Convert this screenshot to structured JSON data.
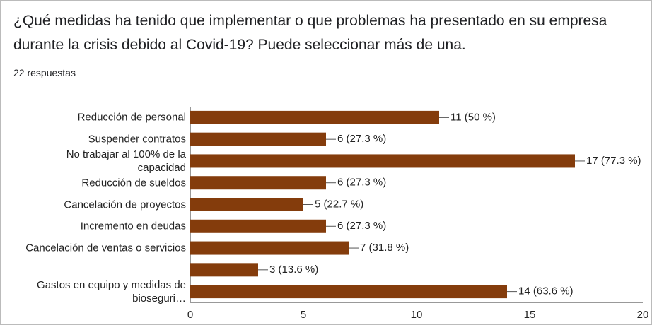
{
  "title": "¿Qué medidas ha tenido que implementar o que problemas ha presentado en su empresa durante la crisis debido al Covid-19? Puede seleccionar más de una.",
  "subtitle": "22 respuestas",
  "chart_data": {
    "type": "barh",
    "categories": [
      "Reducción de personal",
      "Suspender contratos",
      "No trabajar al 100% de la capacidad",
      "Reducción de sueldos",
      "Cancelación de proyectos",
      "Incremento en deudas",
      "Cancelación de ventas o servicios",
      null,
      "Gastos en equipo y medidas de bioseguri…"
    ],
    "values": [
      11,
      6,
      17,
      6,
      5,
      6,
      7,
      3,
      14
    ],
    "value_labels": [
      "11 (50 %)",
      "6 (27.3 %)",
      "17 (77.3 %)",
      "6 (27.3 %)",
      "5 (22.7 %)",
      "6 (27.3 %)",
      "7 (31.8 %)",
      "3 (13.6 %)",
      "14 (63.6 %)"
    ],
    "color": "#843c0c",
    "xlim": [
      0,
      20
    ],
    "xticks": [
      0,
      5,
      10,
      15,
      20
    ],
    "grid": false
  }
}
